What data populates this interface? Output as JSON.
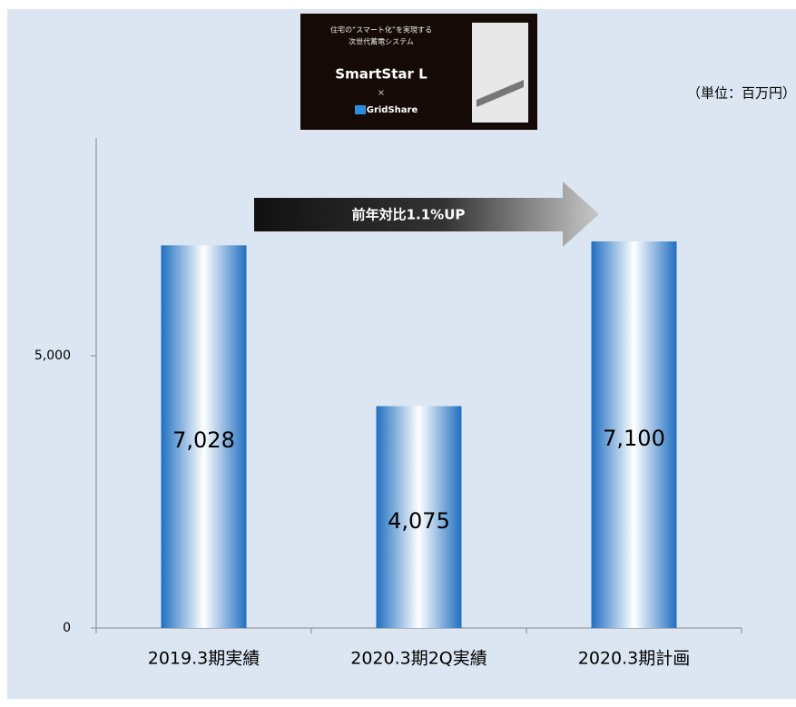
{
  "chart_data": {
    "type": "bar",
    "categories": [
      "2019.3期実績",
      "2020.3期2Q実績",
      "2020.3期計画"
    ],
    "values": [
      7028,
      4075,
      7100
    ],
    "value_labels": [
      "7,028",
      "4,075",
      "7,100"
    ],
    "color": "#1f6fc0",
    "ylim": [
      0,
      9000
    ],
    "yticks": [
      0,
      {
        "value": 5000,
        "label": "5,000"
      }
    ],
    "grid": false,
    "annotations": [
      "前年対比1.1%UP",
      "（単位：百万円）"
    ],
    "logo_text": [
      "住宅の“スマート化”を実現する",
      "次世代蓄電システム",
      "SmartStar L",
      "×",
      "GridShare"
    ]
  }
}
